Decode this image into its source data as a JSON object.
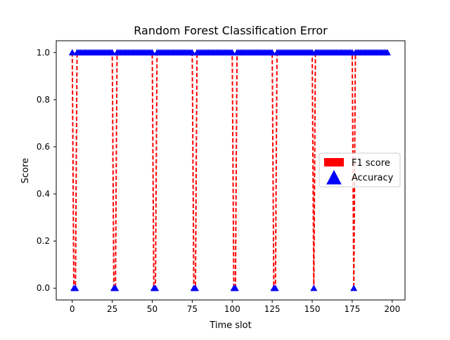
{
  "chart_data": {
    "type": "line",
    "title": "Random Forest Classification Error",
    "xlabel": "Time slot",
    "ylabel": "Score",
    "xlim": [
      -10,
      208
    ],
    "ylim": [
      -0.05,
      1.05
    ],
    "x_ticks": [
      0,
      25,
      50,
      75,
      100,
      125,
      150,
      175,
      200
    ],
    "y_ticks": [
      0.0,
      0.2,
      0.4,
      0.6,
      0.8,
      1.0
    ],
    "x_tick_labels": [
      "0",
      "25",
      "50",
      "75",
      "100",
      "125",
      "150",
      "175",
      "200"
    ],
    "y_tick_labels": [
      "0.0",
      "0.2",
      "0.4",
      "0.6",
      "0.8",
      "1.0"
    ],
    "grid": false,
    "legend_position": "center-right",
    "x_range": [
      0,
      197
    ],
    "zero_slots": [
      1,
      2,
      26,
      27,
      51,
      52,
      76,
      77,
      101,
      102,
      126,
      127,
      151,
      176
    ],
    "default_value": 1.0,
    "series": [
      {
        "name": "F1 score",
        "style": "dashed line",
        "color": "#ff0000"
      },
      {
        "name": "Accuracy",
        "style": "triangle markers",
        "color": "#0000ff"
      }
    ]
  }
}
